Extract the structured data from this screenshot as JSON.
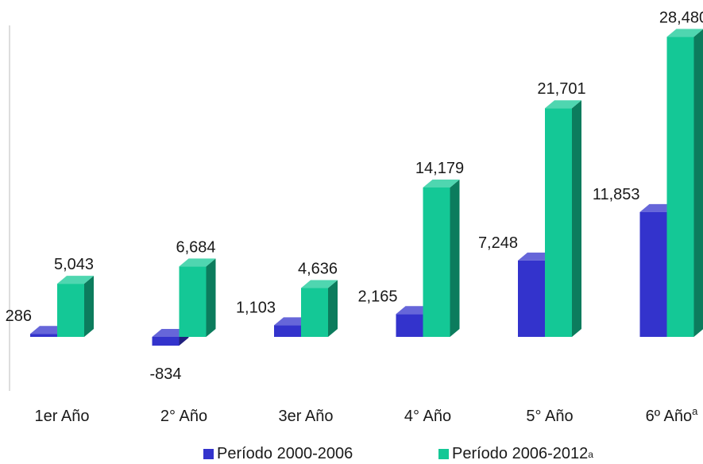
{
  "chart_data": {
    "type": "bar",
    "title": "",
    "xlabel": "",
    "ylabel": "",
    "ylim": [
      -1000,
      30000
    ],
    "grid": false,
    "legend_position": "bottom",
    "categories": [
      "1er Año",
      "2° Año",
      "3er Año",
      "4° Año",
      "5° Año",
      "6º Año"
    ],
    "category_superscripts": [
      "",
      "",
      "",
      "",
      "",
      "a"
    ],
    "series": [
      {
        "name": "Período 2000-2006",
        "color": "#3333cc",
        "values": [
          286,
          -834,
          1103,
          2165,
          7248,
          11853
        ],
        "labels": [
          "286",
          "-834",
          "1,103",
          "2,165",
          "7,248",
          "11,853"
        ]
      },
      {
        "name": "Período 2006-2012",
        "name_superscript": "a",
        "color": "#14c896",
        "values": [
          5043,
          6684,
          4636,
          14179,
          21701,
          28480
        ],
        "labels": [
          "5,043",
          "6,684",
          "4,636",
          "14,179",
          "21,701",
          "28,480"
        ]
      }
    ]
  }
}
